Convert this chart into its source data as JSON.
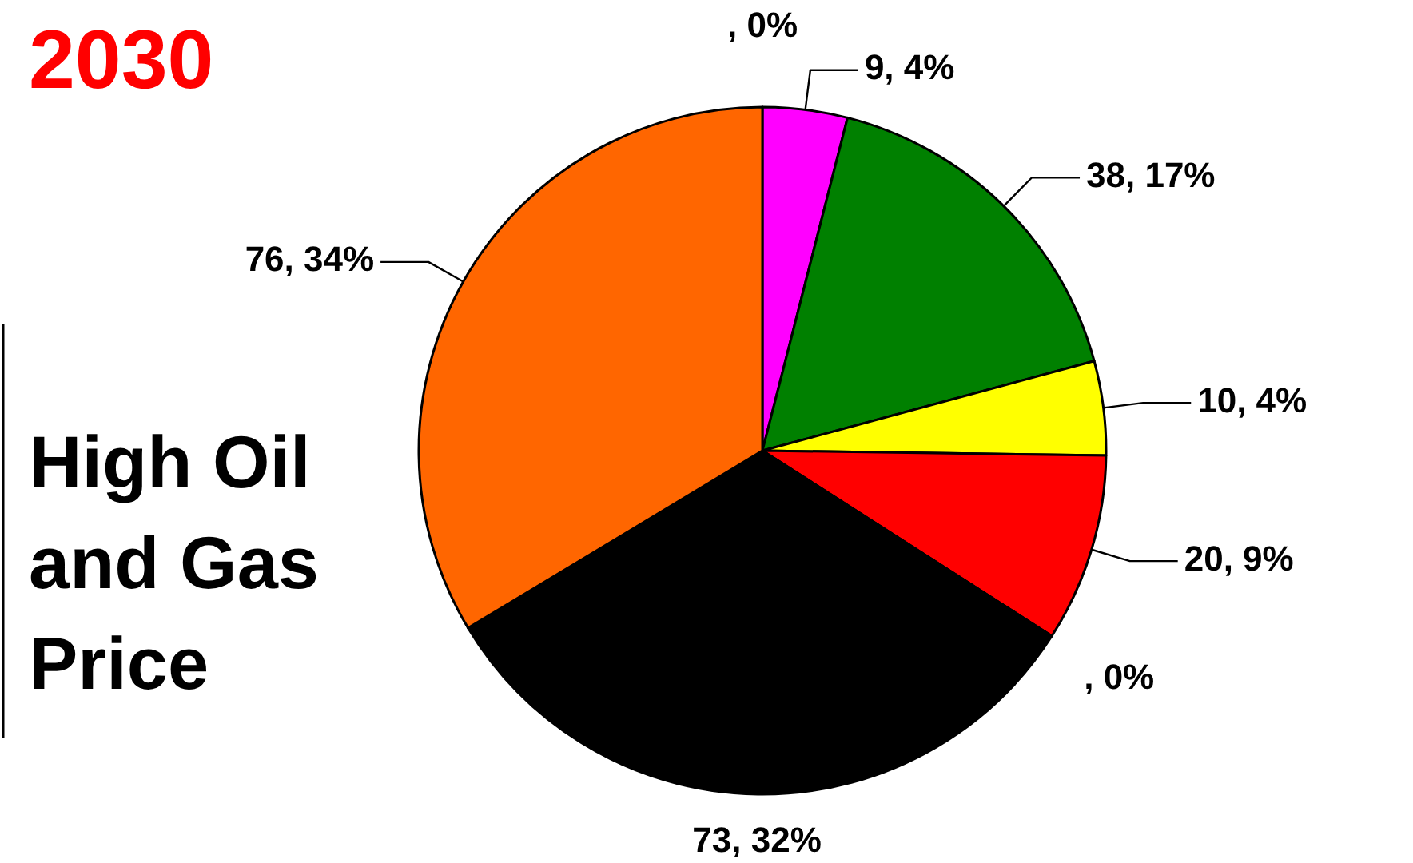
{
  "chart_data": {
    "type": "pie",
    "title": "2030",
    "subtitle": "High Oil and Gas Price",
    "categories": [
      null,
      null,
      null,
      null,
      null,
      null,
      null,
      null
    ],
    "values": [
      0,
      9,
      38,
      10,
      20,
      0,
      73,
      76
    ],
    "colors": [
      "#0000ff",
      "#ff00ff",
      "#008000",
      "#ffff00",
      "#ff0000",
      "#00ffff",
      "#000000",
      "#ff6600"
    ],
    "value_labels": [
      ", 0%",
      "9, 4%",
      "38, 17%",
      "10, 4%",
      "20, 9%",
      ", 0%",
      "73, 32%",
      "76, 34%"
    ]
  }
}
